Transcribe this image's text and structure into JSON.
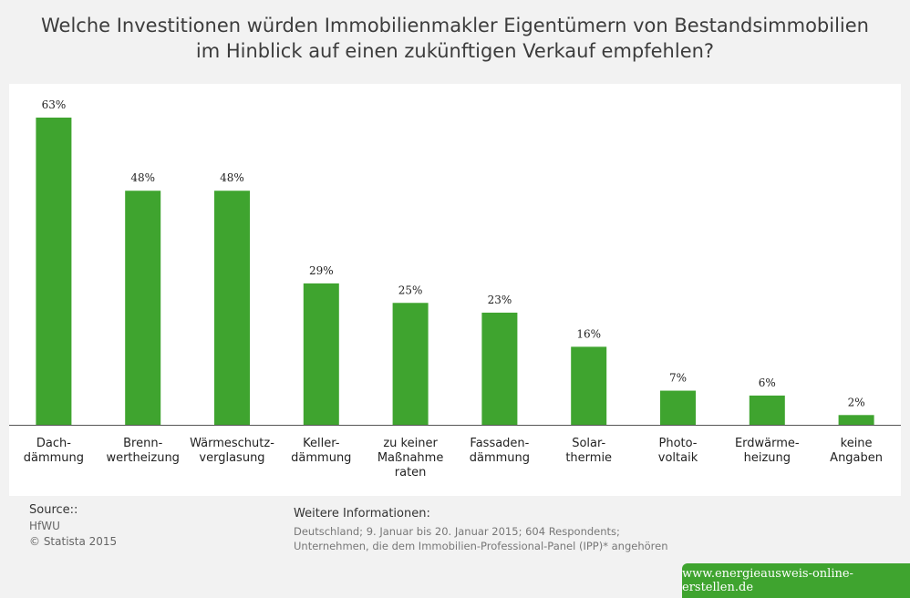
{
  "header": {
    "title_line1": "Welche Investitionen würden Immobilienmakler Eigentümern von Bestandsimmobilien",
    "title_line2": "im Hinblick auf einen zukünftigen Verkauf empfehlen?"
  },
  "chart_data": {
    "type": "bar",
    "categories": [
      [
        "Dach-",
        "dämmung"
      ],
      [
        "Brenn-",
        "wertheizung"
      ],
      [
        "Wärmeschutz-",
        "verglasung"
      ],
      [
        "Keller-",
        "dämmung"
      ],
      [
        "zu keiner",
        "Maßnahme",
        "raten"
      ],
      [
        "Fassaden-",
        "dämmung"
      ],
      [
        "Solar-",
        "thermie"
      ],
      [
        "Photo-",
        "voltaik"
      ],
      [
        "Erdwärme-",
        "heizung"
      ],
      [
        "keine",
        "Angaben"
      ]
    ],
    "values": [
      63,
      48,
      48,
      29,
      25,
      23,
      16,
      7,
      6,
      2
    ],
    "value_labels": [
      "63%",
      "48%",
      "48%",
      "29%",
      "25%",
      "23%",
      "16%",
      "7%",
      "6%",
      "2%"
    ],
    "ylim": [
      0,
      63
    ],
    "grid": false,
    "bar_color": "#3fa42f"
  },
  "source": {
    "heading": "Source::",
    "lines": [
      "HfWU",
      "© Statista 2015"
    ]
  },
  "info": {
    "heading": "Weitere Informationen:",
    "lines": [
      "Deutschland; 9. Januar bis 20. Januar 2015; 604 Respondents;",
      "Unternehmen, die dem Immobilien-Professional-Panel (IPP)* angehören"
    ]
  },
  "footer": {
    "website": "www.energieausweis-online-erstellen.de"
  }
}
